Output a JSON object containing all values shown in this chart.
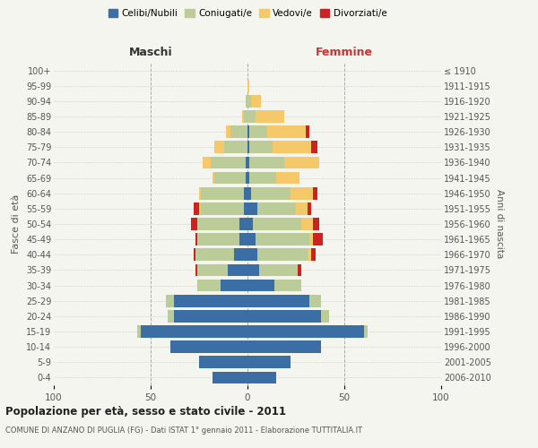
{
  "age_groups": [
    "0-4",
    "5-9",
    "10-14",
    "15-19",
    "20-24",
    "25-29",
    "30-34",
    "35-39",
    "40-44",
    "45-49",
    "50-54",
    "55-59",
    "60-64",
    "65-69",
    "70-74",
    "75-79",
    "80-84",
    "85-89",
    "90-94",
    "95-99",
    "100+"
  ],
  "birth_years": [
    "2006-2010",
    "2001-2005",
    "1996-2000",
    "1991-1995",
    "1986-1990",
    "1981-1985",
    "1976-1980",
    "1971-1975",
    "1966-1970",
    "1961-1965",
    "1956-1960",
    "1951-1955",
    "1946-1950",
    "1941-1945",
    "1936-1940",
    "1931-1935",
    "1926-1930",
    "1921-1925",
    "1916-1920",
    "1911-1915",
    "≤ 1910"
  ],
  "males": {
    "celibi": [
      18,
      25,
      40,
      55,
      38,
      38,
      14,
      10,
      7,
      4,
      4,
      2,
      2,
      1,
      1,
      0,
      0,
      0,
      0,
      0,
      0
    ],
    "coniugati": [
      0,
      0,
      0,
      2,
      3,
      4,
      12,
      16,
      20,
      22,
      22,
      22,
      22,
      16,
      18,
      12,
      9,
      2,
      1,
      0,
      0
    ],
    "vedovi": [
      0,
      0,
      0,
      0,
      0,
      0,
      0,
      0,
      0,
      0,
      0,
      1,
      1,
      1,
      4,
      5,
      2,
      1,
      0,
      0,
      0
    ],
    "divorziati": [
      0,
      0,
      0,
      0,
      0,
      0,
      0,
      1,
      1,
      1,
      3,
      3,
      0,
      0,
      0,
      0,
      0,
      0,
      0,
      0,
      0
    ]
  },
  "females": {
    "nubili": [
      15,
      22,
      38,
      60,
      38,
      32,
      14,
      6,
      5,
      4,
      3,
      5,
      2,
      1,
      1,
      1,
      1,
      0,
      0,
      0,
      0
    ],
    "coniugate": [
      0,
      0,
      0,
      2,
      4,
      6,
      14,
      20,
      26,
      28,
      25,
      20,
      20,
      14,
      18,
      12,
      9,
      4,
      2,
      0,
      0
    ],
    "vedove": [
      0,
      0,
      0,
      0,
      0,
      0,
      0,
      0,
      2,
      2,
      6,
      6,
      12,
      12,
      18,
      20,
      20,
      15,
      5,
      1,
      0
    ],
    "divorziate": [
      0,
      0,
      0,
      0,
      0,
      0,
      0,
      2,
      2,
      5,
      3,
      2,
      2,
      0,
      0,
      3,
      2,
      0,
      0,
      0,
      0
    ]
  },
  "colors": {
    "celibi_nubili": "#3A6EA5",
    "coniugati": "#BBCC99",
    "vedovi": "#F5C96A",
    "divorziati": "#CC2222"
  },
  "title": "Popolazione per età, sesso e stato civile - 2011",
  "subtitle": "COMUNE DI ANZANO DI PUGLIA (FG) - Dati ISTAT 1° gennaio 2011 - Elaborazione TUTTITALIA.IT",
  "xlabel_left": "Maschi",
  "xlabel_right": "Femmine",
  "ylabel_left": "Fasce di età",
  "ylabel_right": "Anni di nascita",
  "xlim": 100,
  "legend_labels": [
    "Celibi/Nubili",
    "Coniugati/e",
    "Vedovi/e",
    "Divorziati/e"
  ],
  "background_color": "#f5f5f0",
  "grid_color": "#cccccc"
}
